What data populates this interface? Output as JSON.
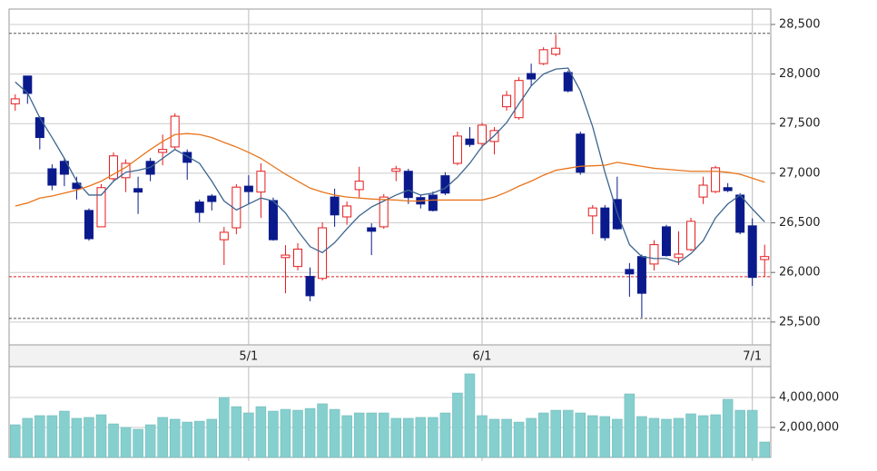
{
  "chart_data": [
    {
      "type": "candlestick",
      "categories": [
        null,
        null,
        null,
        null,
        null,
        null,
        null,
        null,
        null,
        null,
        null,
        null,
        null,
        null,
        null,
        null,
        null,
        null,
        null,
        "5/1",
        null,
        null,
        null,
        null,
        null,
        null,
        null,
        null,
        null,
        null,
        null,
        null,
        null,
        null,
        null,
        null,
        null,
        null,
        "6/1",
        null,
        null,
        null,
        null,
        null,
        null,
        null,
        null,
        null,
        null,
        null,
        null,
        null,
        null,
        null,
        null,
        null,
        null,
        null,
        null,
        null,
        "7/1",
        null
      ],
      "open": [
        27700,
        27980,
        27560,
        27045,
        27120,
        26900,
        26625,
        26460,
        26945,
        26955,
        26845,
        27120,
        27210,
        27265,
        27210,
        26710,
        26770,
        26330,
        26450,
        26870,
        26810,
        26725,
        26150,
        26060,
        25960,
        25940,
        26760,
        26560,
        26835,
        26450,
        26460,
        27020,
        27020,
        26755,
        26780,
        26975,
        27100,
        27345,
        27300,
        27320,
        27670,
        27560,
        28005,
        28105,
        28200,
        28015,
        27395,
        26570,
        26650,
        26735,
        26030,
        26160,
        26085,
        26460,
        26150,
        26230,
        26760,
        26815,
        26855,
        26780,
        26470,
        26130
      ],
      "high": [
        27796,
        27980,
        27575,
        27090,
        27155,
        26965,
        26645,
        26890,
        27210,
        27140,
        26965,
        27155,
        27390,
        27605,
        27240,
        26735,
        26790,
        26460,
        26890,
        26980,
        27100,
        26755,
        26275,
        26295,
        26050,
        26505,
        26845,
        26715,
        27065,
        26495,
        26790,
        27075,
        27045,
        26780,
        26815,
        27010,
        27420,
        27465,
        27510,
        27465,
        27830,
        27970,
        28105,
        28270,
        28400,
        28035,
        27420,
        26680,
        26680,
        26965,
        26095,
        26180,
        26325,
        26480,
        26415,
        26550,
        26965,
        27075,
        26900,
        26800,
        26545,
        26280
      ],
      "low": [
        27631,
        27700,
        27240,
        26830,
        26870,
        26735,
        26320,
        26460,
        26920,
        26810,
        26590,
        26920,
        27080,
        27240,
        26935,
        26505,
        26625,
        26075,
        26385,
        26690,
        26550,
        26320,
        25790,
        26020,
        25710,
        25920,
        26460,
        26480,
        26755,
        26175,
        26440,
        26920,
        26690,
        26645,
        26615,
        26780,
        27080,
        27265,
        27255,
        27190,
        27630,
        27540,
        27880,
        28090,
        28180,
        27815,
        26985,
        26385,
        26320,
        26430,
        25755,
        25545,
        26020,
        26160,
        26075,
        26215,
        26690,
        26800,
        26810,
        26385,
        25865,
        25955
      ],
      "close": [
        27750,
        27805,
        27360,
        26880,
        26990,
        26845,
        26340,
        26855,
        27175,
        27100,
        26810,
        26990,
        27240,
        27575,
        27110,
        26605,
        26715,
        26405,
        26860,
        26815,
        27020,
        26330,
        26175,
        26235,
        25765,
        26450,
        26580,
        26670,
        26920,
        26415,
        26760,
        27045,
        26755,
        26690,
        26625,
        26800,
        27375,
        27290,
        27485,
        27430,
        27785,
        27935,
        27950,
        28245,
        28260,
        27830,
        27010,
        26650,
        26350,
        26440,
        25985,
        25790,
        26280,
        26170,
        26185,
        26515,
        26880,
        27055,
        26825,
        26405,
        25950,
        26160
      ],
      "up_color": "#e41a1c",
      "down_color": "#0a1a8c",
      "series": [
        {
          "color": "#3d6590",
          "values": [
            27920,
            27810,
            27560,
            27360,
            27150,
            26920,
            26780,
            26780,
            26920,
            27010,
            27030,
            27060,
            27150,
            27240,
            27170,
            27100,
            26920,
            26720,
            26630,
            26690,
            26750,
            26720,
            26600,
            26420,
            26260,
            26200,
            26300,
            26440,
            26570,
            26660,
            26720,
            26780,
            26830,
            26780,
            26800,
            26850,
            26960,
            27100,
            27270,
            27380,
            27510,
            27700,
            27880,
            28000,
            28050,
            28060,
            27830,
            27470,
            27010,
            26600,
            26280,
            26160,
            26140,
            26140,
            26100,
            26190,
            26320,
            26550,
            26690,
            26780,
            26640,
            26510
          ]
        },
        {
          "color": "#e8741a",
          "values": [
            26670,
            26700,
            26750,
            26770,
            26800,
            26830,
            26870,
            26920,
            26990,
            27060,
            27150,
            27240,
            27320,
            27390,
            27400,
            27390,
            27360,
            27310,
            27265,
            27210,
            27150,
            27070,
            26990,
            26920,
            26850,
            26810,
            26780,
            26760,
            26750,
            26740,
            26735,
            26730,
            26720,
            26720,
            26730,
            26730,
            26730,
            26730,
            26730,
            26760,
            26810,
            26870,
            26920,
            26980,
            27030,
            27050,
            27070,
            27075,
            27080,
            27110,
            27090,
            27070,
            27050,
            27040,
            27030,
            27020,
            27020,
            27020,
            27010,
            26990,
            26950,
            26910
          ]
        }
      ],
      "hlines": [
        {
          "value": 28410,
          "color": "#555555"
        },
        {
          "value": 25537,
          "color": "#555555"
        },
        {
          "value": 25957,
          "color": "#e41a1c"
        }
      ],
      "ylim": [
        25270,
        28655
      ],
      "yticks": [
        {
          "value": 25500,
          "label": "25,500"
        },
        {
          "value": 26000,
          "label": "26,000"
        },
        {
          "value": 26500,
          "label": "26,500"
        },
        {
          "value": 27000,
          "label": "27,000"
        },
        {
          "value": 27500,
          "label": "27,500"
        },
        {
          "value": 28000,
          "label": "28,000"
        },
        {
          "value": 28500,
          "label": "28,500"
        }
      ],
      "grid": true
    },
    {
      "type": "bar",
      "values": [
        2180000,
        2610000,
        2790000,
        2790000,
        3090000,
        2610000,
        2670000,
        2850000,
        2240000,
        2000000,
        1880000,
        2180000,
        2670000,
        2550000,
        2360000,
        2420000,
        2550000,
        4000000,
        3390000,
        2970000,
        3390000,
        3090000,
        3210000,
        3150000,
        3270000,
        3580000,
        3210000,
        2790000,
        2970000,
        2970000,
        2970000,
        2610000,
        2610000,
        2670000,
        2670000,
        2970000,
        4300000,
        5580000,
        2790000,
        2550000,
        2550000,
        2360000,
        2610000,
        2970000,
        3150000,
        3150000,
        2970000,
        2790000,
        2730000,
        2550000,
        4240000,
        2730000,
        2610000,
        2550000,
        2610000,
        2910000,
        2790000,
        2850000,
        3880000,
        3150000,
        3150000,
        1030000
      ],
      "color": "#86cfcf",
      "ylim": [
        0,
        6060000
      ],
      "yticks": [
        {
          "value": 2000000,
          "label": "2,000,000"
        },
        {
          "value": 4000000,
          "label": "4,000,000"
        }
      ],
      "grid": true
    }
  ]
}
